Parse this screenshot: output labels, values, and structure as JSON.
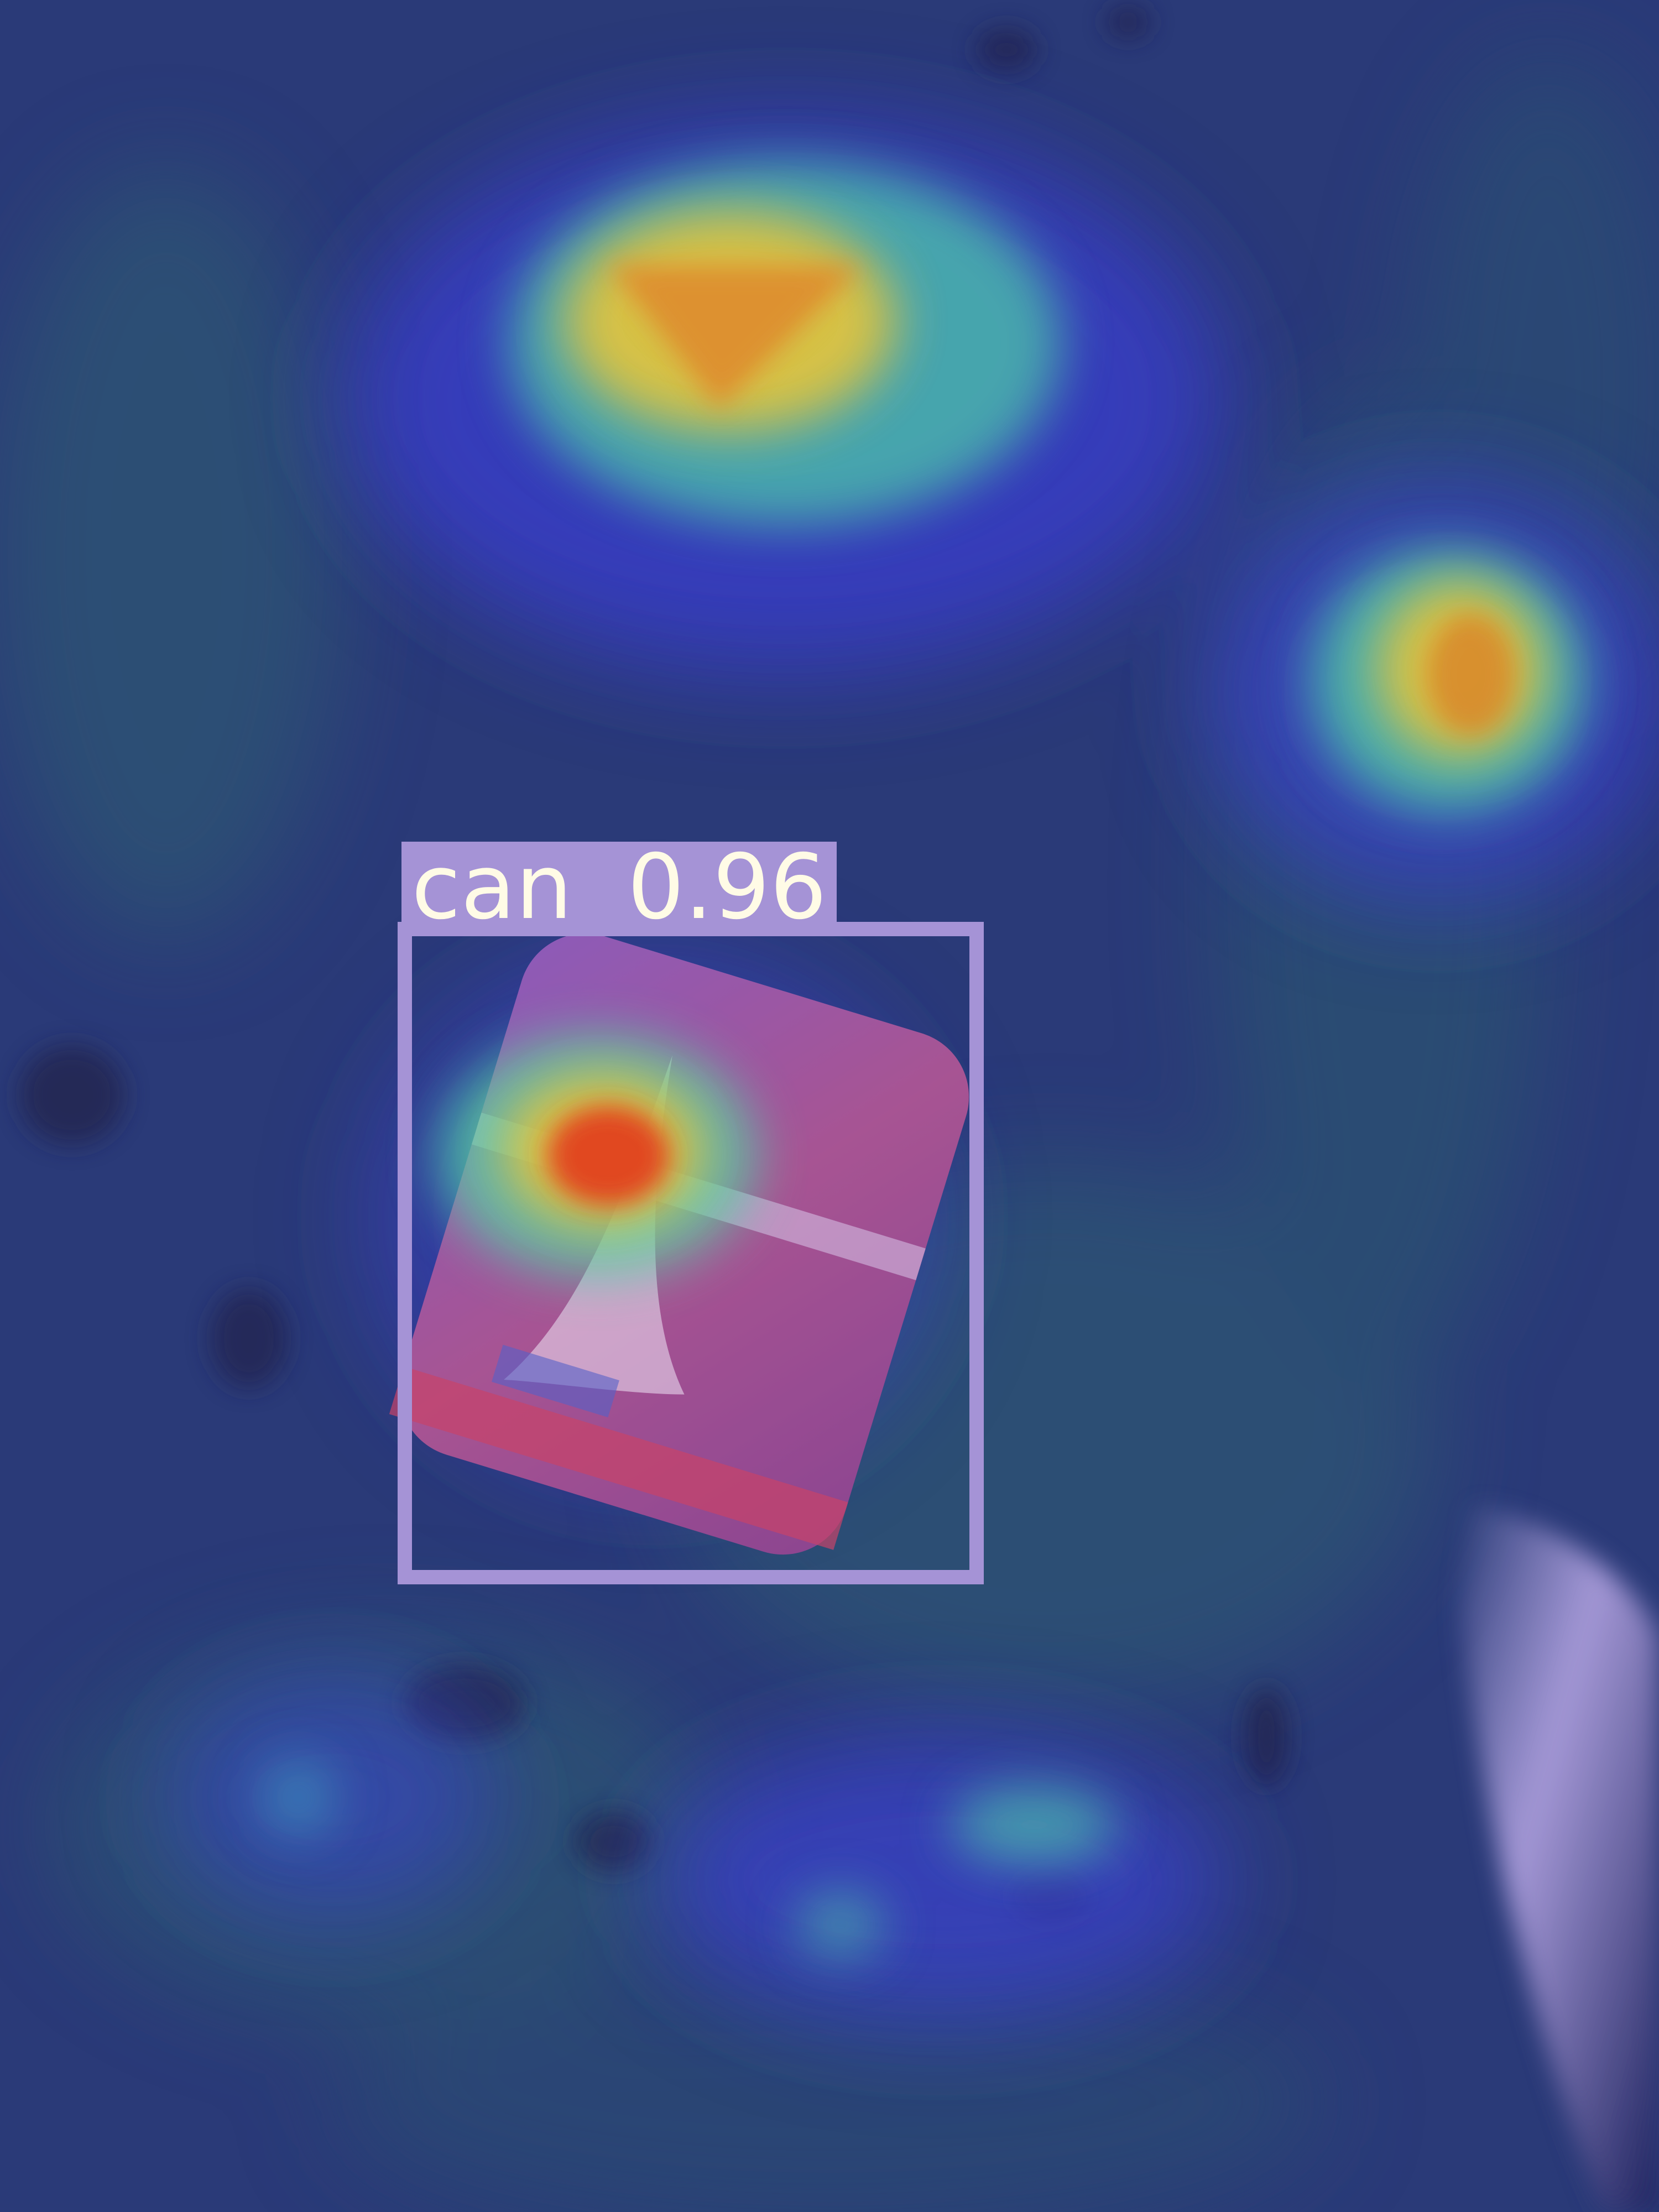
{
  "image": {
    "kind": "object-detection heatmap overlay",
    "colors": {
      "ground": "#2a3a78",
      "overlay_blue": "#3b3fd0",
      "box": "#a593d6",
      "label_text": "#fffbe6",
      "heat_hot": "#e23a1f",
      "heat_warm": "#e6c53a",
      "heat_mid": "#4fd2a8"
    }
  },
  "detection": {
    "class_name": "can",
    "confidence": "0.96"
  }
}
